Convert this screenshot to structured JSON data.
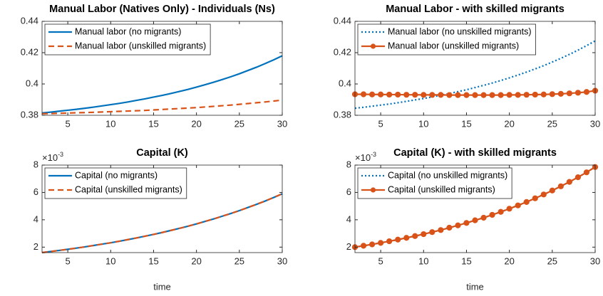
{
  "chart_data": [
    {
      "type": "line",
      "title": "Manual Labor (Natives Only) - Individuals (Ns)",
      "x": [
        2,
        3,
        4,
        5,
        6,
        7,
        8,
        9,
        10,
        11,
        12,
        13,
        14,
        15,
        16,
        17,
        18,
        19,
        20,
        21,
        22,
        23,
        24,
        25,
        26,
        27,
        28,
        29,
        30
      ],
      "xlim": [
        2,
        30
      ],
      "xticks": [
        5,
        10,
        15,
        20,
        25,
        30
      ],
      "ylim": [
        0.38,
        0.44
      ],
      "yticks": [
        0.38,
        0.4,
        0.42,
        0.44
      ],
      "legend": "upper left",
      "series": [
        {
          "name": "Manual labor (no migrants)",
          "color": "#0072BD",
          "line_style": "solid",
          "marker": "none",
          "values": [
            0.3815,
            0.382,
            0.3826,
            0.3832,
            0.3838,
            0.3845,
            0.3852,
            0.386,
            0.3868,
            0.3876,
            0.3885,
            0.3895,
            0.3905,
            0.3916,
            0.3927,
            0.3939,
            0.3952,
            0.3965,
            0.398,
            0.3995,
            0.4011,
            0.4028,
            0.4046,
            0.4065,
            0.4086,
            0.4107,
            0.413,
            0.4154,
            0.418
          ]
        },
        {
          "name": "Manual labor (unskilled migrants)",
          "color": "#D95319",
          "line_style": "dashed",
          "marker": "none",
          "values": [
            0.381,
            0.3811,
            0.3813,
            0.3814,
            0.3816,
            0.3817,
            0.3819,
            0.3821,
            0.3823,
            0.3825,
            0.3827,
            0.3829,
            0.3831,
            0.3834,
            0.3837,
            0.384,
            0.3843,
            0.3846,
            0.3849,
            0.3853,
            0.3857,
            0.3861,
            0.3865,
            0.387,
            0.3875,
            0.388,
            0.3885,
            0.3891,
            0.3897
          ]
        }
      ]
    },
    {
      "type": "line",
      "title": "Manual Labor - with skilled migrants",
      "x": [
        2,
        3,
        4,
        5,
        6,
        7,
        8,
        9,
        10,
        11,
        12,
        13,
        14,
        15,
        16,
        17,
        18,
        19,
        20,
        21,
        22,
        23,
        24,
        25,
        26,
        27,
        28,
        29,
        30
      ],
      "xlim": [
        2,
        30
      ],
      "xticks": [
        5,
        10,
        15,
        20,
        25,
        30
      ],
      "ylim": [
        0.38,
        0.44
      ],
      "yticks": [
        0.38,
        0.4,
        0.42,
        0.44
      ],
      "legend": "upper left",
      "series": [
        {
          "name": "Manual labor (no unskilled migrants)",
          "color": "#0072BD",
          "line_style": "dotted",
          "marker": "none",
          "values": [
            0.3845,
            0.3851,
            0.3858,
            0.3865,
            0.3872,
            0.388,
            0.3889,
            0.3898,
            0.3907,
            0.3917,
            0.3928,
            0.3939,
            0.3951,
            0.3963,
            0.3977,
            0.3991,
            0.4006,
            0.4022,
            0.4039,
            0.4057,
            0.4076,
            0.4096,
            0.4117,
            0.414,
            0.4164,
            0.4189,
            0.4216,
            0.4245,
            0.4275
          ]
        },
        {
          "name": "Manual labor (unskilled migrants)",
          "color": "#D95319",
          "line_style": "solid",
          "marker": "circle",
          "values": [
            0.3934,
            0.3934,
            0.3933,
            0.3933,
            0.3932,
            0.3932,
            0.3931,
            0.3931,
            0.393,
            0.393,
            0.393,
            0.3929,
            0.3929,
            0.3929,
            0.3929,
            0.3929,
            0.3929,
            0.3929,
            0.393,
            0.393,
            0.3931,
            0.3932,
            0.3933,
            0.3935,
            0.3937,
            0.394,
            0.3944,
            0.3949,
            0.3957
          ]
        }
      ]
    },
    {
      "type": "line",
      "title": "Capital (K)",
      "xlabel": "time",
      "y_exponent_label": {
        "base": "×10",
        "power": "-3"
      },
      "x": [
        2,
        3,
        4,
        5,
        6,
        7,
        8,
        9,
        10,
        11,
        12,
        13,
        14,
        15,
        16,
        17,
        18,
        19,
        20,
        21,
        22,
        23,
        24,
        25,
        26,
        27,
        28,
        29,
        30
      ],
      "xlim": [
        2,
        30
      ],
      "xticks": [
        5,
        10,
        15,
        20,
        25,
        30
      ],
      "ylim": [
        0.0016,
        0.008
      ],
      "yticks": [
        {
          "value": 0.002,
          "label": "2"
        },
        {
          "value": 0.004,
          "label": "4"
        },
        {
          "value": 0.006,
          "label": "6"
        },
        {
          "value": 0.008,
          "label": "8"
        }
      ],
      "legend": "upper left",
      "series": [
        {
          "name": "Capital (no migrants)",
          "color": "#0072BD",
          "line_style": "solid",
          "marker": "none",
          "values": [
            0.0016,
            0.00168,
            0.00176,
            0.00184,
            0.00193,
            0.00202,
            0.00212,
            0.00222,
            0.00232,
            0.00243,
            0.00255,
            0.00267,
            0.0028,
            0.00293,
            0.00307,
            0.00322,
            0.00337,
            0.00353,
            0.0037,
            0.00388,
            0.00406,
            0.00426,
            0.00446,
            0.00467,
            0.0049,
            0.00513,
            0.00537,
            0.00563,
            0.0059
          ]
        },
        {
          "name": "Capital (unskilled migrants)",
          "color": "#D95319",
          "line_style": "dashed",
          "marker": "none",
          "values": [
            0.0016,
            0.00168,
            0.00176,
            0.00184,
            0.00193,
            0.00202,
            0.00212,
            0.00222,
            0.00232,
            0.00243,
            0.00255,
            0.00267,
            0.0028,
            0.00293,
            0.00307,
            0.00322,
            0.00337,
            0.00353,
            0.0037,
            0.00388,
            0.00406,
            0.00426,
            0.00446,
            0.00467,
            0.0049,
            0.00513,
            0.00537,
            0.00563,
            0.0059
          ]
        }
      ]
    },
    {
      "type": "line",
      "title": "Capital (K) - with skilled migrants",
      "xlabel": "time",
      "y_exponent_label": {
        "base": "×10",
        "power": "-3"
      },
      "x": [
        2,
        3,
        4,
        5,
        6,
        7,
        8,
        9,
        10,
        11,
        12,
        13,
        14,
        15,
        16,
        17,
        18,
        19,
        20,
        21,
        22,
        23,
        24,
        25,
        26,
        27,
        28,
        29,
        30
      ],
      "xlim": [
        2,
        30
      ],
      "xticks": [
        5,
        10,
        15,
        20,
        25,
        30
      ],
      "ylim": [
        0.0016,
        0.008
      ],
      "yticks": [
        {
          "value": 0.002,
          "label": "2"
        },
        {
          "value": 0.004,
          "label": "4"
        },
        {
          "value": 0.006,
          "label": "6"
        },
        {
          "value": 0.008,
          "label": "8"
        }
      ],
      "legend": "upper left",
      "series": [
        {
          "name": "Capital (no unskilled migrants)",
          "color": "#0072BD",
          "line_style": "dotted",
          "marker": "none",
          "values": [
            0.002,
            0.0021,
            0.0022,
            0.00231,
            0.00243,
            0.00255,
            0.00268,
            0.00281,
            0.00295,
            0.0031,
            0.00325,
            0.00342,
            0.00359,
            0.00377,
            0.00396,
            0.00415,
            0.00436,
            0.00458,
            0.00481,
            0.00505,
            0.0053,
            0.00557,
            0.00585,
            0.00614,
            0.00645,
            0.00677,
            0.00711,
            0.00747,
            0.00786
          ]
        },
        {
          "name": "Capital (unskilled migrants)",
          "color": "#D95319",
          "line_style": "solid",
          "marker": "circle",
          "values": [
            0.002,
            0.0021,
            0.0022,
            0.00231,
            0.00243,
            0.00255,
            0.00268,
            0.00281,
            0.00295,
            0.0031,
            0.00325,
            0.00342,
            0.00359,
            0.00377,
            0.00396,
            0.00415,
            0.00436,
            0.00458,
            0.00481,
            0.00505,
            0.0053,
            0.00557,
            0.00585,
            0.00614,
            0.00645,
            0.00677,
            0.00711,
            0.00747,
            0.00786
          ]
        }
      ]
    }
  ]
}
